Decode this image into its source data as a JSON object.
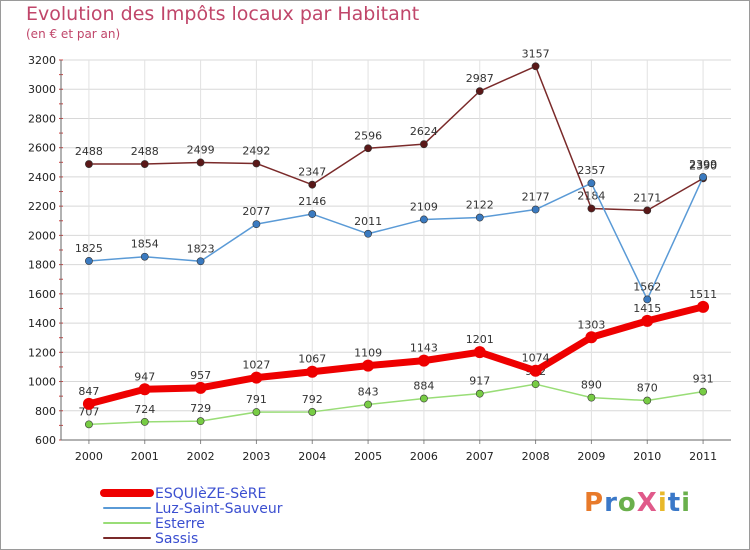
{
  "header": {
    "title": "Evolution des Impôts locaux par Habitant",
    "subtitle": "(en € et par an)"
  },
  "brand": {
    "text": "ProXiti",
    "letter_colors": [
      "#e87a2a",
      "#3a78c8",
      "#6ab04c",
      "#e05a8a",
      "#e8b82a",
      "#3a78c8",
      "#6ab04c"
    ]
  },
  "chart_data": {
    "type": "line",
    "categories": [
      "2000",
      "2001",
      "2002",
      "2003",
      "2004",
      "2005",
      "2006",
      "2007",
      "2008",
      "2009",
      "2010",
      "2011"
    ],
    "ylim": [
      600,
      3200
    ],
    "yticks": [
      600,
      800,
      1000,
      1200,
      1400,
      1600,
      1800,
      2000,
      2200,
      2400,
      2600,
      2800,
      3000,
      3200
    ],
    "grid": true,
    "legend_position": "bottom-left",
    "series": [
      {
        "name": "Sassis",
        "color": "#7a2a2a",
        "marker": "#5a1818",
        "values": [
          2488,
          2488,
          2499,
          2492,
          2347,
          2596,
          2624,
          2987,
          3157,
          2184,
          2171,
          2390
        ]
      },
      {
        "name": "Luz-Saint-Sauveur",
        "color": "#5a9ad6",
        "marker": "#3a7ac0",
        "values": [
          1825,
          1854,
          1823,
          2077,
          2146,
          2011,
          2109,
          2122,
          2177,
          2357,
          1562,
          2399
        ]
      },
      {
        "name": "Esterre",
        "color": "#99dd77",
        "marker": "#77cc44",
        "values": [
          707,
          724,
          729,
          791,
          792,
          843,
          884,
          917,
          982,
          890,
          870,
          931
        ]
      },
      {
        "name": "ESQUIèZE-SèRE",
        "color": "#ee0000",
        "marker": "#ee0000",
        "values": [
          847,
          947,
          957,
          1027,
          1067,
          1109,
          1143,
          1201,
          1074,
          1303,
          1415,
          1511
        ]
      }
    ]
  }
}
